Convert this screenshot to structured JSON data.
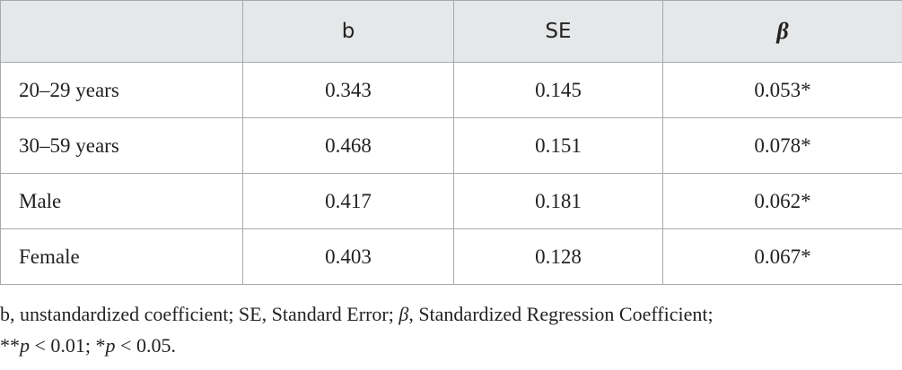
{
  "table": {
    "header": [
      "b",
      "SE",
      "β"
    ],
    "rows": [
      [
        "20–29 years",
        "0.343",
        "0.145",
        "0.053*"
      ],
      [
        "30–59 years",
        "0.468",
        "0.151",
        "0.078*"
      ],
      [
        "Male",
        "0.417",
        "0.181",
        "0.062*"
      ],
      [
        "Female",
        "0.403",
        "0.128",
        "0.067*"
      ]
    ]
  },
  "footnote": {
    "line1": [
      "b, unstandardized coefficient; SE, Standard Error; ",
      "β",
      ", Standardized Regression Coefficient;"
    ],
    "line2": [
      "**",
      "p",
      " < 0.01; *",
      "p",
      " < 0.05."
    ]
  }
}
